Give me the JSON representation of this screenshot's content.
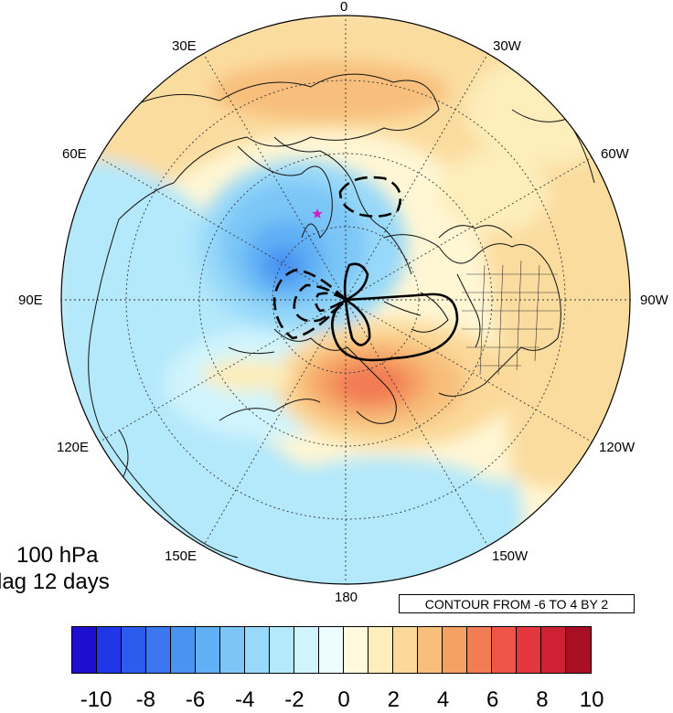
{
  "title": {
    "line1": "100 hPa",
    "line2": "lag 12 days"
  },
  "longitude_labels": {
    "0": "0",
    "30W": "30W",
    "60W": "60W",
    "90W": "90W",
    "120W": "120W",
    "150W": "150W",
    "180": "180",
    "150E": "150E",
    "120E": "120E",
    "90E": "90E",
    "60E": "60E",
    "30E": "30E"
  },
  "contour_info": "CONTOUR FROM -6 TO 4 BY 2",
  "colorbar": {
    "colors": [
      "#1e0fd0",
      "#1f37e6",
      "#2c5bee",
      "#3b78f0",
      "#4a93f2",
      "#61b0f5",
      "#7cc6f7",
      "#98d9f9",
      "#b4e8fb",
      "#d0f4fd",
      "#edfdff",
      "#fff9dd",
      "#fdeebb",
      "#fbd99a",
      "#f8bf7c",
      "#f5a164",
      "#f27c54",
      "#ee5547",
      "#e2373e",
      "#cc2233",
      "#a80e24"
    ],
    "tick_labels": [
      "-10",
      "-8",
      "-6",
      "-4",
      "-2",
      "0",
      "2",
      "4",
      "6",
      "8",
      "10"
    ]
  },
  "marker_color": "#d020c8"
}
